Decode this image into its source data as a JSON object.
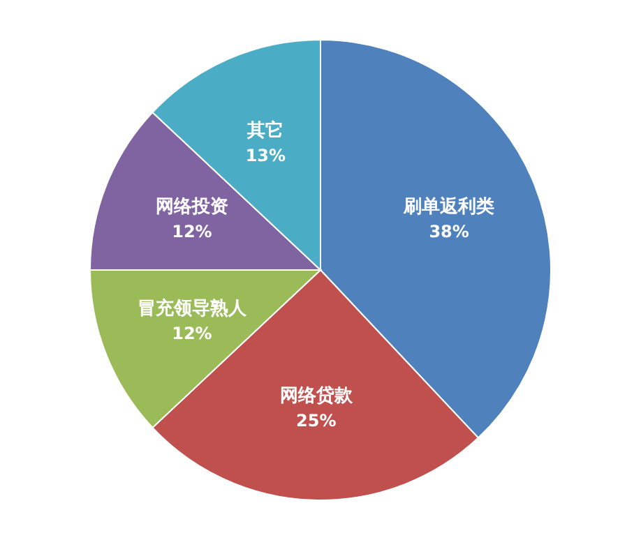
{
  "chart_data": {
    "type": "pie",
    "categories": [
      "刷单返利类",
      "网络贷款",
      "冒充领导熟人",
      "网络投资",
      "其它"
    ],
    "values": [
      38,
      25,
      12,
      12,
      13
    ],
    "colors": [
      "#4f81bd",
      "#c0504d",
      "#9bbb59",
      "#8064a2",
      "#4bacc6"
    ],
    "value_labels": [
      "38%",
      "25%",
      "12%",
      "12%",
      "13%"
    ]
  }
}
